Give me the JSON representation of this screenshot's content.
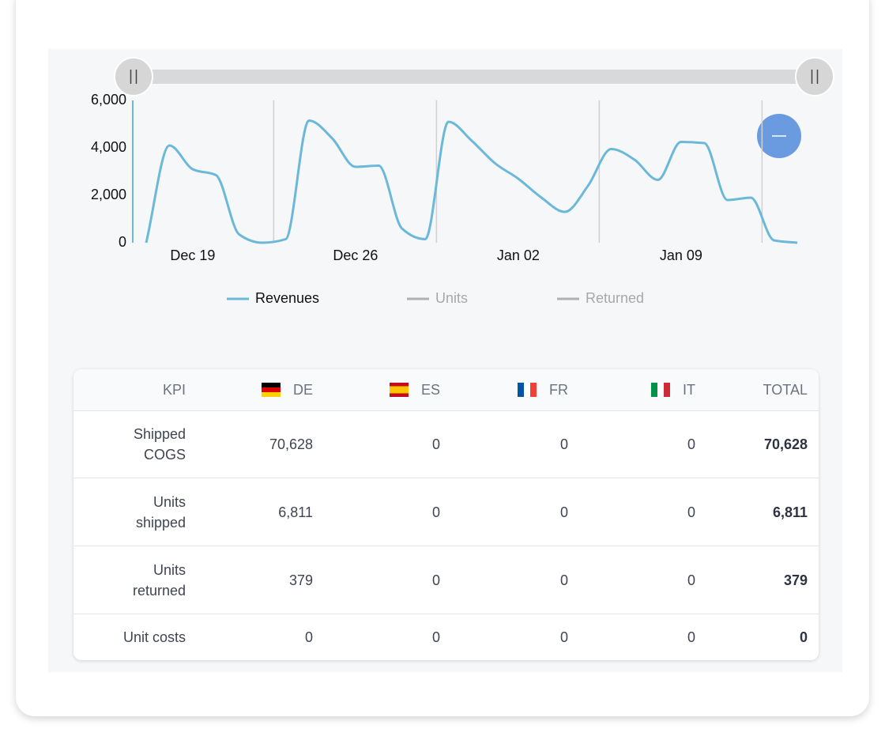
{
  "chart_data": {
    "type": "line",
    "categories": [
      null,
      null,
      "Dec 19",
      null,
      null,
      null,
      null,
      null,
      null,
      "Dec 26",
      null,
      null,
      null,
      null,
      null,
      null,
      "Jan 02",
      null,
      null,
      null,
      null,
      null,
      null,
      "Jan 09",
      null,
      null,
      null,
      null,
      null
    ],
    "series": [
      {
        "name": "Revenues",
        "color": "#6bb8d9",
        "values": [
          0,
          4100,
          3100,
          2850,
          350,
          0,
          150,
          5150,
          4400,
          3200,
          3250,
          600,
          150,
          5100,
          4300,
          3350,
          2700,
          1900,
          1300,
          2400,
          3950,
          3500,
          2650,
          4250,
          4200,
          1800,
          1900,
          100,
          0
        ]
      },
      {
        "name": "Units",
        "color": "#b0b0b0",
        "hidden": true
      },
      {
        "name": "Returned",
        "color": "#b0b0b0",
        "hidden": true
      }
    ],
    "ylim": [
      0,
      6000
    ],
    "yticks": [
      0,
      {
        "value": 2000,
        "label": "2,000"
      },
      {
        "value": 4000,
        "label": "4,000"
      },
      {
        "value": 6000,
        "label": "6,000"
      }
    ]
  },
  "table": {
    "columns": [
      "KPI",
      "DE",
      "ES",
      "FR",
      "IT",
      "TOTAL"
    ],
    "rows": [
      [
        "Shipped COGS",
        "70,628",
        "0",
        "0",
        "0",
        "70,628"
      ],
      [
        "Units shipped",
        "6,811",
        "0",
        "0",
        "0",
        "6,811"
      ],
      [
        "Units returned",
        "379",
        "0",
        "0",
        "0",
        "379"
      ],
      [
        "Unit costs",
        "0",
        "0",
        "0",
        "0",
        "0"
      ]
    ]
  }
}
